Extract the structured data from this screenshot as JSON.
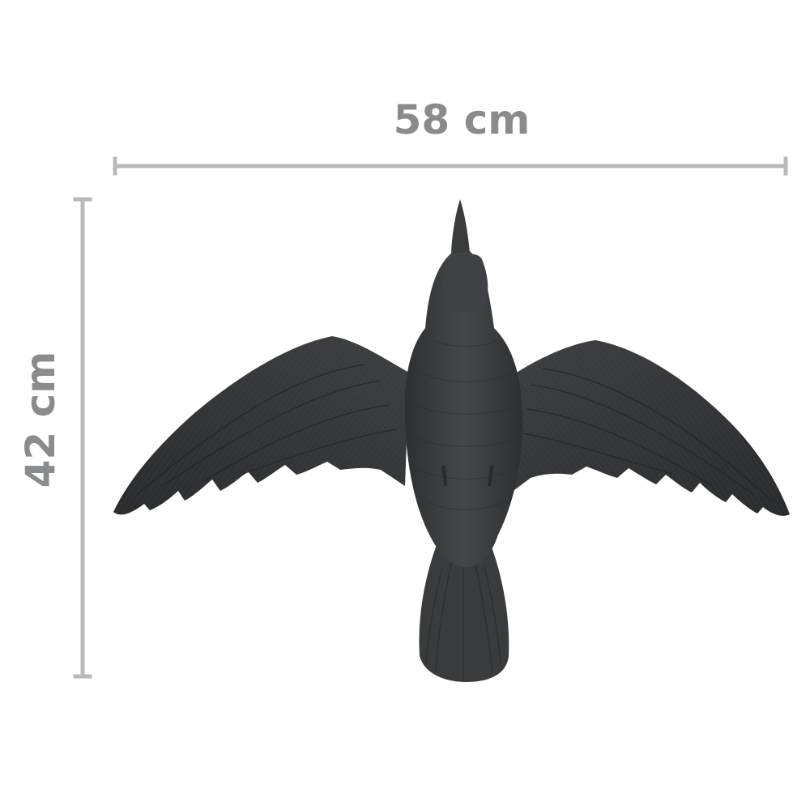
{
  "dimensions": {
    "width_label": "58 cm",
    "height_label": "42 cm"
  },
  "subject": {
    "icon": "flying-crow-decoy",
    "body_color": "#3b3c3e",
    "dimension_line_color": "#b7babd",
    "dimension_text_color": "#8a8b8d"
  }
}
